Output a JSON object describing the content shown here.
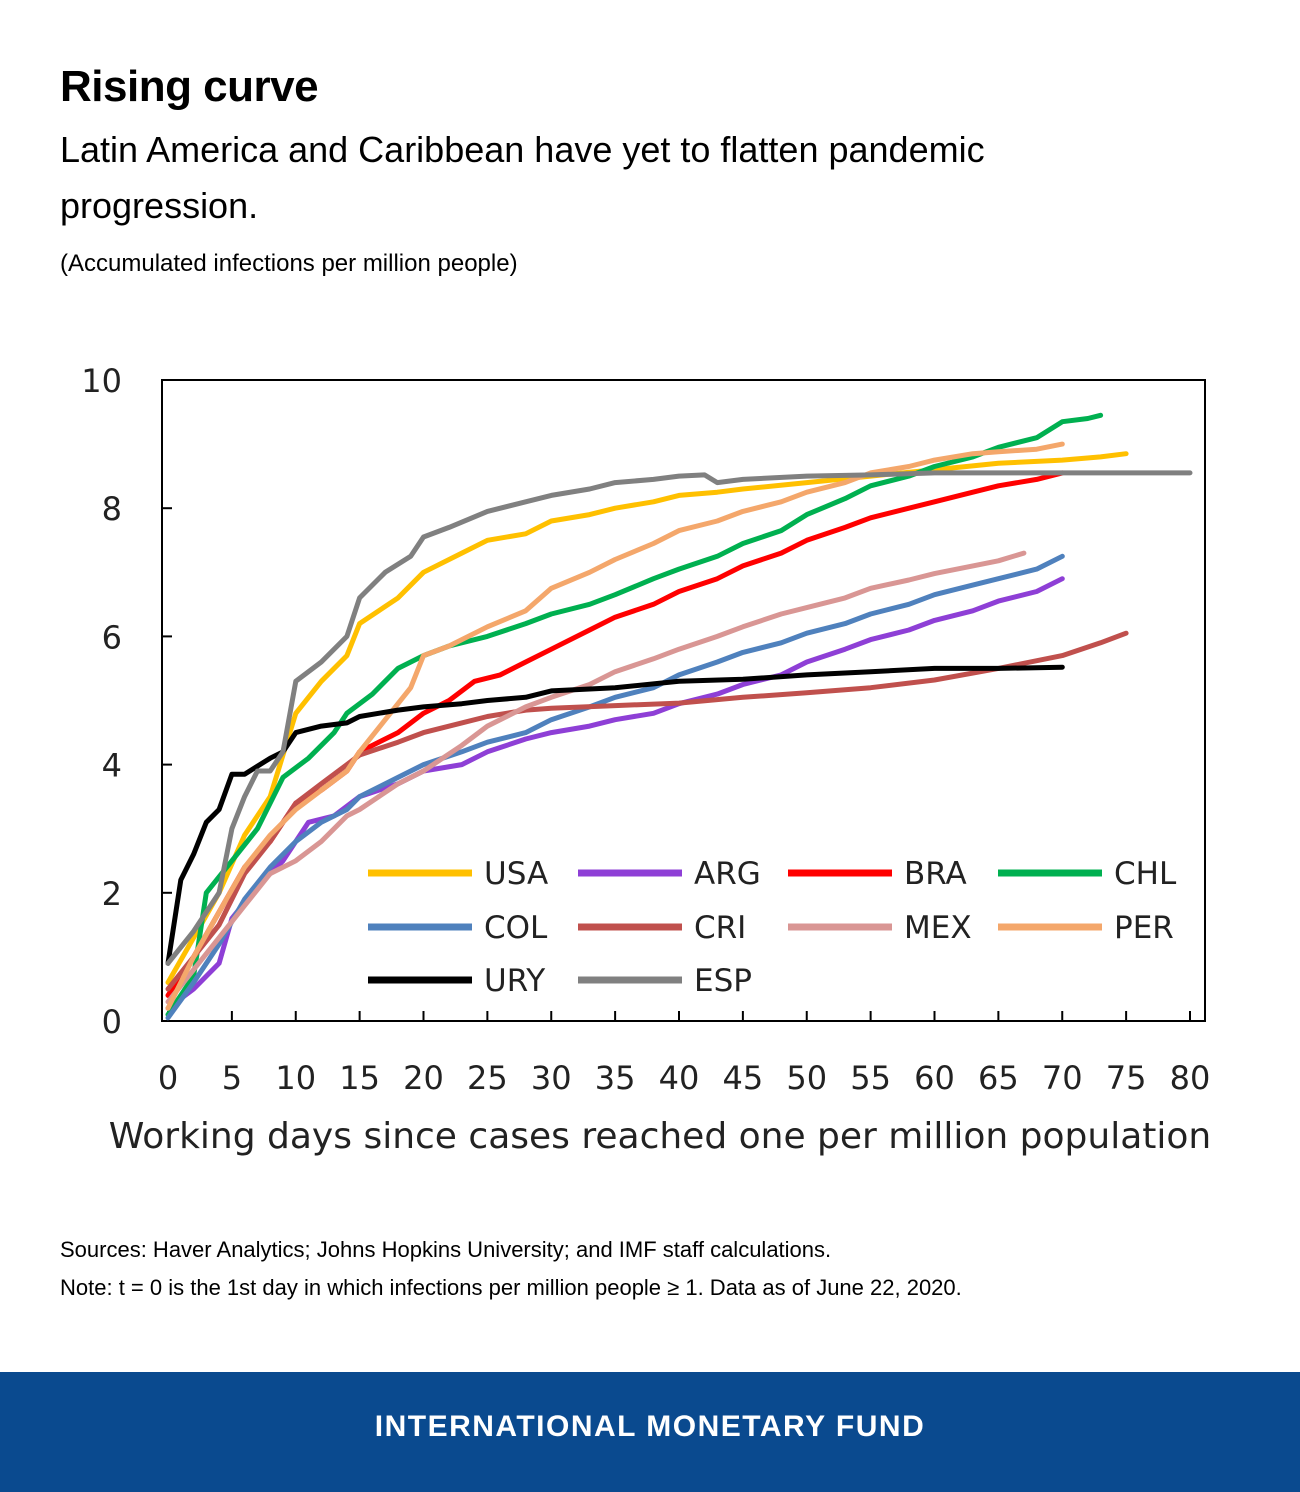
{
  "header": {
    "title": "Rising curve",
    "subtitle": "Latin America and Caribbean have yet to flatten pandemic progression.",
    "units": "(Accumulated infections per million people)"
  },
  "notes": {
    "sources": "Sources: Haver Analytics; Johns Hopkins University; and IMF staff calculations.",
    "note": "Note: t = 0 is the 1st day in which infections per million people ≥ 1. Data as of June 22, 2020."
  },
  "footer": {
    "org": "INTERNATIONAL MONETARY FUND"
  },
  "chart_data": {
    "type": "line",
    "title": "",
    "xlabel": "Working days since cases reached one per million population",
    "ylabel": "",
    "xlim": [
      0,
      80
    ],
    "ylim": [
      0,
      10
    ],
    "xticks": [
      0,
      5,
      10,
      15,
      20,
      25,
      30,
      35,
      40,
      45,
      50,
      55,
      60,
      65,
      70,
      75,
      80
    ],
    "yticks": [
      0,
      2,
      4,
      6,
      8,
      10
    ],
    "legend_position": "lower-right inside",
    "series": [
      {
        "name": "USA",
        "color": "#ffc000",
        "points": [
          [
            0,
            0.6
          ],
          [
            2,
            1.3
          ],
          [
            4,
            2.0
          ],
          [
            6,
            2.9
          ],
          [
            8,
            3.5
          ],
          [
            10,
            4.8
          ],
          [
            12,
            5.3
          ],
          [
            14,
            5.7
          ],
          [
            15,
            6.2
          ],
          [
            18,
            6.6
          ],
          [
            20,
            7.0
          ],
          [
            23,
            7.3
          ],
          [
            25,
            7.5
          ],
          [
            28,
            7.6
          ],
          [
            30,
            7.8
          ],
          [
            33,
            7.9
          ],
          [
            35,
            8.0
          ],
          [
            38,
            8.1
          ],
          [
            40,
            8.2
          ],
          [
            43,
            8.25
          ],
          [
            45,
            8.3
          ],
          [
            50,
            8.4
          ],
          [
            55,
            8.5
          ],
          [
            60,
            8.6
          ],
          [
            65,
            8.7
          ],
          [
            70,
            8.75
          ],
          [
            73,
            8.8
          ],
          [
            75,
            8.85
          ]
        ]
      },
      {
        "name": "ARG",
        "color": "#8e3fd6",
        "points": [
          [
            0,
            0.2
          ],
          [
            2,
            0.5
          ],
          [
            4,
            0.9
          ],
          [
            5,
            1.6
          ],
          [
            7,
            2.1
          ],
          [
            9,
            2.5
          ],
          [
            11,
            3.1
          ],
          [
            13,
            3.2
          ],
          [
            15,
            3.5
          ],
          [
            18,
            3.7
          ],
          [
            20,
            3.9
          ],
          [
            23,
            4.0
          ],
          [
            25,
            4.2
          ],
          [
            28,
            4.4
          ],
          [
            30,
            4.5
          ],
          [
            33,
            4.6
          ],
          [
            35,
            4.7
          ],
          [
            38,
            4.8
          ],
          [
            40,
            4.95
          ],
          [
            43,
            5.1
          ],
          [
            45,
            5.25
          ],
          [
            48,
            5.4
          ],
          [
            50,
            5.6
          ],
          [
            53,
            5.8
          ],
          [
            55,
            5.95
          ],
          [
            58,
            6.1
          ],
          [
            60,
            6.25
          ],
          [
            63,
            6.4
          ],
          [
            65,
            6.55
          ],
          [
            68,
            6.7
          ],
          [
            70,
            6.9
          ]
        ]
      },
      {
        "name": "BRA",
        "color": "#ff0000",
        "points": [
          [
            0,
            0.4
          ],
          [
            2,
            1.0
          ],
          [
            4,
            1.7
          ],
          [
            6,
            2.4
          ],
          [
            8,
            2.8
          ],
          [
            10,
            3.4
          ],
          [
            12,
            3.6
          ],
          [
            14,
            3.9
          ],
          [
            15,
            4.2
          ],
          [
            18,
            4.5
          ],
          [
            20,
            4.8
          ],
          [
            22,
            5.0
          ],
          [
            24,
            5.3
          ],
          [
            26,
            5.4
          ],
          [
            28,
            5.6
          ],
          [
            30,
            5.8
          ],
          [
            33,
            6.1
          ],
          [
            35,
            6.3
          ],
          [
            38,
            6.5
          ],
          [
            40,
            6.7
          ],
          [
            43,
            6.9
          ],
          [
            45,
            7.1
          ],
          [
            48,
            7.3
          ],
          [
            50,
            7.5
          ],
          [
            53,
            7.7
          ],
          [
            55,
            7.85
          ],
          [
            58,
            8.0
          ],
          [
            60,
            8.1
          ],
          [
            63,
            8.25
          ],
          [
            65,
            8.35
          ],
          [
            68,
            8.45
          ],
          [
            70,
            8.55
          ]
        ]
      },
      {
        "name": "CHL",
        "color": "#00b050",
        "points": [
          [
            0,
            0.1
          ],
          [
            2,
            0.7
          ],
          [
            3,
            2.0
          ],
          [
            5,
            2.5
          ],
          [
            7,
            3.0
          ],
          [
            9,
            3.8
          ],
          [
            11,
            4.1
          ],
          [
            13,
            4.5
          ],
          [
            14,
            4.8
          ],
          [
            16,
            5.1
          ],
          [
            18,
            5.5
          ],
          [
            20,
            5.7
          ],
          [
            22,
            5.85
          ],
          [
            25,
            6.0
          ],
          [
            28,
            6.2
          ],
          [
            30,
            6.35
          ],
          [
            33,
            6.5
          ],
          [
            35,
            6.65
          ],
          [
            38,
            6.9
          ],
          [
            40,
            7.05
          ],
          [
            43,
            7.25
          ],
          [
            45,
            7.45
          ],
          [
            48,
            7.65
          ],
          [
            50,
            7.9
          ],
          [
            53,
            8.15
          ],
          [
            55,
            8.35
          ],
          [
            58,
            8.5
          ],
          [
            60,
            8.65
          ],
          [
            63,
            8.8
          ],
          [
            65,
            8.95
          ],
          [
            68,
            9.1
          ],
          [
            70,
            9.35
          ],
          [
            72,
            9.4
          ],
          [
            73,
            9.45
          ]
        ]
      },
      {
        "name": "COL",
        "color": "#4f81bd",
        "points": [
          [
            0,
            0.05
          ],
          [
            2,
            0.6
          ],
          [
            4,
            1.2
          ],
          [
            6,
            1.9
          ],
          [
            8,
            2.4
          ],
          [
            10,
            2.8
          ],
          [
            12,
            3.1
          ],
          [
            14,
            3.3
          ],
          [
            15,
            3.5
          ],
          [
            18,
            3.8
          ],
          [
            20,
            4.0
          ],
          [
            23,
            4.2
          ],
          [
            25,
            4.35
          ],
          [
            28,
            4.5
          ],
          [
            30,
            4.7
          ],
          [
            33,
            4.9
          ],
          [
            35,
            5.05
          ],
          [
            38,
            5.2
          ],
          [
            40,
            5.4
          ],
          [
            43,
            5.6
          ],
          [
            45,
            5.75
          ],
          [
            48,
            5.9
          ],
          [
            50,
            6.05
          ],
          [
            53,
            6.2
          ],
          [
            55,
            6.35
          ],
          [
            58,
            6.5
          ],
          [
            60,
            6.65
          ],
          [
            63,
            6.8
          ],
          [
            65,
            6.9
          ],
          [
            68,
            7.05
          ],
          [
            70,
            7.25
          ]
        ]
      },
      {
        "name": "CRI",
        "color": "#c0504d",
        "points": [
          [
            0,
            0.5
          ],
          [
            2,
            1.0
          ],
          [
            4,
            1.5
          ],
          [
            6,
            2.3
          ],
          [
            8,
            2.8
          ],
          [
            10,
            3.4
          ],
          [
            12,
            3.7
          ],
          [
            14,
            4.0
          ],
          [
            15,
            4.15
          ],
          [
            18,
            4.35
          ],
          [
            20,
            4.5
          ],
          [
            23,
            4.65
          ],
          [
            25,
            4.75
          ],
          [
            28,
            4.85
          ],
          [
            30,
            4.88
          ],
          [
            35,
            4.92
          ],
          [
            40,
            4.96
          ],
          [
            45,
            5.05
          ],
          [
            50,
            5.12
          ],
          [
            55,
            5.2
          ],
          [
            60,
            5.32
          ],
          [
            65,
            5.5
          ],
          [
            70,
            5.7
          ],
          [
            73,
            5.9
          ],
          [
            75,
            6.05
          ]
        ]
      },
      {
        "name": "MEX",
        "color": "#d99694",
        "points": [
          [
            0,
            0.3
          ],
          [
            2,
            0.8
          ],
          [
            4,
            1.3
          ],
          [
            6,
            1.8
          ],
          [
            8,
            2.3
          ],
          [
            10,
            2.5
          ],
          [
            12,
            2.8
          ],
          [
            14,
            3.2
          ],
          [
            15,
            3.3
          ],
          [
            18,
            3.7
          ],
          [
            20,
            3.9
          ],
          [
            23,
            4.3
          ],
          [
            25,
            4.6
          ],
          [
            28,
            4.9
          ],
          [
            30,
            5.05
          ],
          [
            33,
            5.25
          ],
          [
            35,
            5.45
          ],
          [
            38,
            5.65
          ],
          [
            40,
            5.8
          ],
          [
            43,
            6.0
          ],
          [
            45,
            6.15
          ],
          [
            48,
            6.35
          ],
          [
            50,
            6.45
          ],
          [
            53,
            6.6
          ],
          [
            55,
            6.75
          ],
          [
            58,
            6.88
          ],
          [
            60,
            6.98
          ],
          [
            63,
            7.1
          ],
          [
            65,
            7.18
          ],
          [
            67,
            7.3
          ]
        ]
      },
      {
        "name": "PER",
        "color": "#f4a76b",
        "points": [
          [
            0,
            0.2
          ],
          [
            2,
            1.0
          ],
          [
            4,
            1.7
          ],
          [
            6,
            2.4
          ],
          [
            8,
            2.9
          ],
          [
            10,
            3.3
          ],
          [
            12,
            3.6
          ],
          [
            14,
            3.9
          ],
          [
            15,
            4.2
          ],
          [
            17,
            4.7
          ],
          [
            19,
            5.2
          ],
          [
            20,
            5.7
          ],
          [
            22,
            5.85
          ],
          [
            25,
            6.15
          ],
          [
            28,
            6.4
          ],
          [
            30,
            6.75
          ],
          [
            33,
            7.0
          ],
          [
            35,
            7.2
          ],
          [
            38,
            7.45
          ],
          [
            40,
            7.65
          ],
          [
            43,
            7.8
          ],
          [
            45,
            7.95
          ],
          [
            48,
            8.1
          ],
          [
            50,
            8.25
          ],
          [
            53,
            8.4
          ],
          [
            55,
            8.55
          ],
          [
            58,
            8.65
          ],
          [
            60,
            8.75
          ],
          [
            63,
            8.85
          ],
          [
            65,
            8.88
          ],
          [
            68,
            8.92
          ],
          [
            70,
            9.0
          ]
        ]
      },
      {
        "name": "URY",
        "color": "#000000",
        "points": [
          [
            0,
            0.9
          ],
          [
            1,
            2.2
          ],
          [
            2,
            2.6
          ],
          [
            3,
            3.1
          ],
          [
            4,
            3.3
          ],
          [
            5,
            3.85
          ],
          [
            6,
            3.85
          ],
          [
            8,
            4.1
          ],
          [
            9,
            4.2
          ],
          [
            10,
            4.5
          ],
          [
            12,
            4.6
          ],
          [
            14,
            4.65
          ],
          [
            15,
            4.75
          ],
          [
            18,
            4.85
          ],
          [
            20,
            4.9
          ],
          [
            23,
            4.95
          ],
          [
            25,
            5.0
          ],
          [
            28,
            5.05
          ],
          [
            30,
            5.15
          ],
          [
            35,
            5.2
          ],
          [
            40,
            5.3
          ],
          [
            45,
            5.33
          ],
          [
            50,
            5.4
          ],
          [
            55,
            5.45
          ],
          [
            60,
            5.5
          ],
          [
            65,
            5.5
          ],
          [
            70,
            5.52
          ]
        ]
      },
      {
        "name": "ESP",
        "color": "#808080",
        "points": [
          [
            0,
            0.9
          ],
          [
            2,
            1.4
          ],
          [
            4,
            2.0
          ],
          [
            5,
            3.0
          ],
          [
            6,
            3.5
          ],
          [
            7,
            3.9
          ],
          [
            8,
            3.9
          ],
          [
            9,
            4.2
          ],
          [
            10,
            5.3
          ],
          [
            12,
            5.6
          ],
          [
            14,
            6.0
          ],
          [
            15,
            6.6
          ],
          [
            17,
            7.0
          ],
          [
            19,
            7.25
          ],
          [
            20,
            7.55
          ],
          [
            22,
            7.7
          ],
          [
            25,
            7.95
          ],
          [
            28,
            8.1
          ],
          [
            30,
            8.2
          ],
          [
            33,
            8.3
          ],
          [
            35,
            8.4
          ],
          [
            38,
            8.45
          ],
          [
            40,
            8.5
          ],
          [
            42,
            8.52
          ],
          [
            43,
            8.4
          ],
          [
            45,
            8.45
          ],
          [
            50,
            8.5
          ],
          [
            55,
            8.52
          ],
          [
            60,
            8.55
          ],
          [
            65,
            8.55
          ],
          [
            70,
            8.55
          ],
          [
            75,
            8.55
          ],
          [
            80,
            8.55
          ]
        ]
      }
    ]
  }
}
